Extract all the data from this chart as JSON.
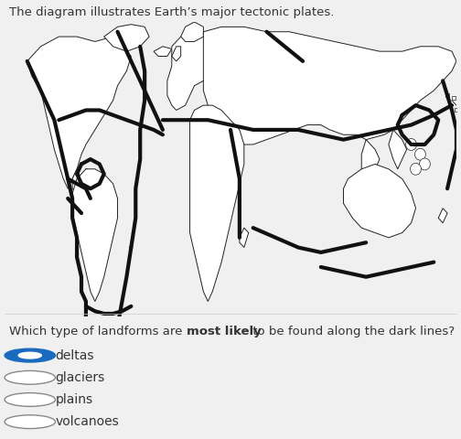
{
  "bg_color": "#f0f0f0",
  "map_bg": "#f0f0f0",
  "title_text": "The diagram illustrates Earth’s major tectonic plates.",
  "question_text_1": "Which type of landforms are ",
  "question_text_bold": "most likely",
  "question_text_2": " to be found along the dark lines?",
  "options": [
    "deltas",
    "glaciers",
    "plains",
    "volcanoes"
  ],
  "selected_option": 0,
  "title_fontsize": 9.5,
  "question_fontsize": 9.5,
  "option_fontsize": 10,
  "continent_color": "#ffffff",
  "continent_edge": "#222222",
  "plate_color": "#111111",
  "plate_linewidth": 3.0,
  "continent_linewidth": 0.7,
  "text_color": "#333333"
}
